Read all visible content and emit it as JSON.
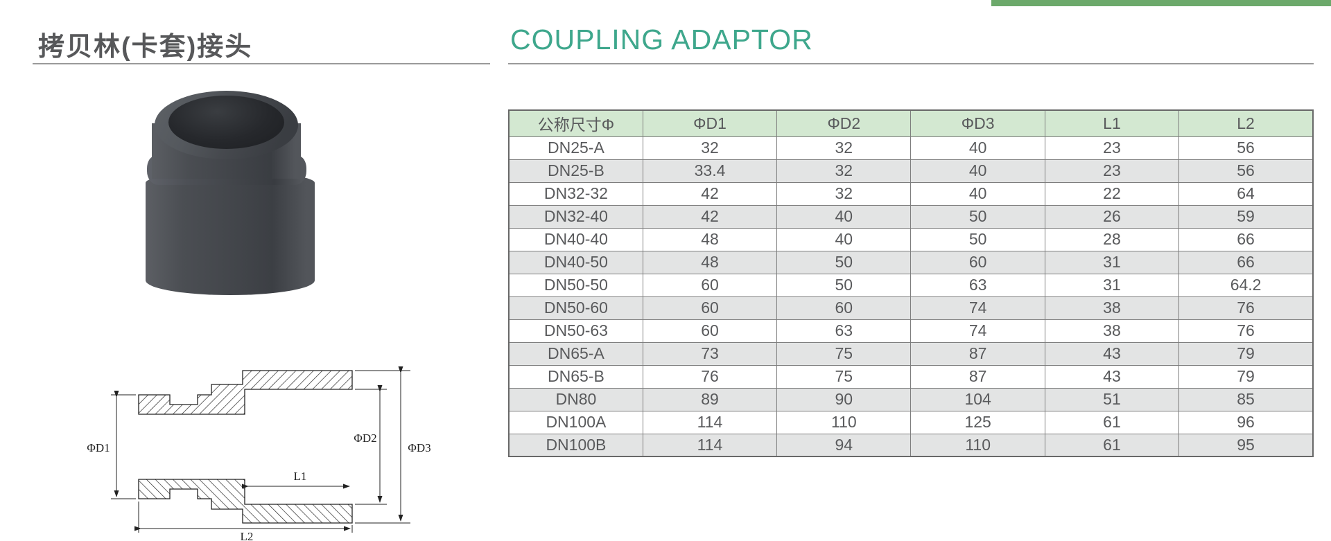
{
  "page": {
    "title_zh": "拷贝林(卡套)接头",
    "title_en": "COUPLING ADAPTOR",
    "colors": {
      "accent_bar": "#6ca96b",
      "title_en": "#3ea78c",
      "title_zh": "#57585a",
      "table_header_bg": "#d3e8d1",
      "table_stripe_bg": "#e3e4e4"
    }
  },
  "drawing": {
    "labels": {
      "d1": "ΦD1",
      "d2": "ΦD2",
      "d3": "ΦD3",
      "l1": "L1",
      "l2": "L2"
    }
  },
  "table": {
    "columns": [
      "公称尺寸Φ",
      "ΦD1",
      "ΦD2",
      "ΦD3",
      "L1",
      "L2"
    ],
    "rows": [
      [
        "DN25-A",
        "32",
        "32",
        "40",
        "23",
        "56"
      ],
      [
        "DN25-B",
        "33.4",
        "32",
        "40",
        "23",
        "56"
      ],
      [
        "DN32-32",
        "42",
        "32",
        "40",
        "22",
        "64"
      ],
      [
        "DN32-40",
        "42",
        "40",
        "50",
        "26",
        "59"
      ],
      [
        "DN40-40",
        "48",
        "40",
        "50",
        "28",
        "66"
      ],
      [
        "DN40-50",
        "48",
        "50",
        "60",
        "31",
        "66"
      ],
      [
        "DN50-50",
        "60",
        "50",
        "63",
        "31",
        "64.2"
      ],
      [
        "DN50-60",
        "60",
        "60",
        "74",
        "38",
        "76"
      ],
      [
        "DN50-63",
        "60",
        "63",
        "74",
        "38",
        "76"
      ],
      [
        "DN65-A",
        "73",
        "75",
        "87",
        "43",
        "79"
      ],
      [
        "DN65-B",
        "76",
        "75",
        "87",
        "43",
        "79"
      ],
      [
        "DN80",
        "89",
        "90",
        "104",
        "51",
        "85"
      ],
      [
        "DN100A",
        "114",
        "110",
        "125",
        "61",
        "96"
      ],
      [
        "DN100B",
        "114",
        "94",
        "110",
        "61",
        "95"
      ]
    ]
  }
}
